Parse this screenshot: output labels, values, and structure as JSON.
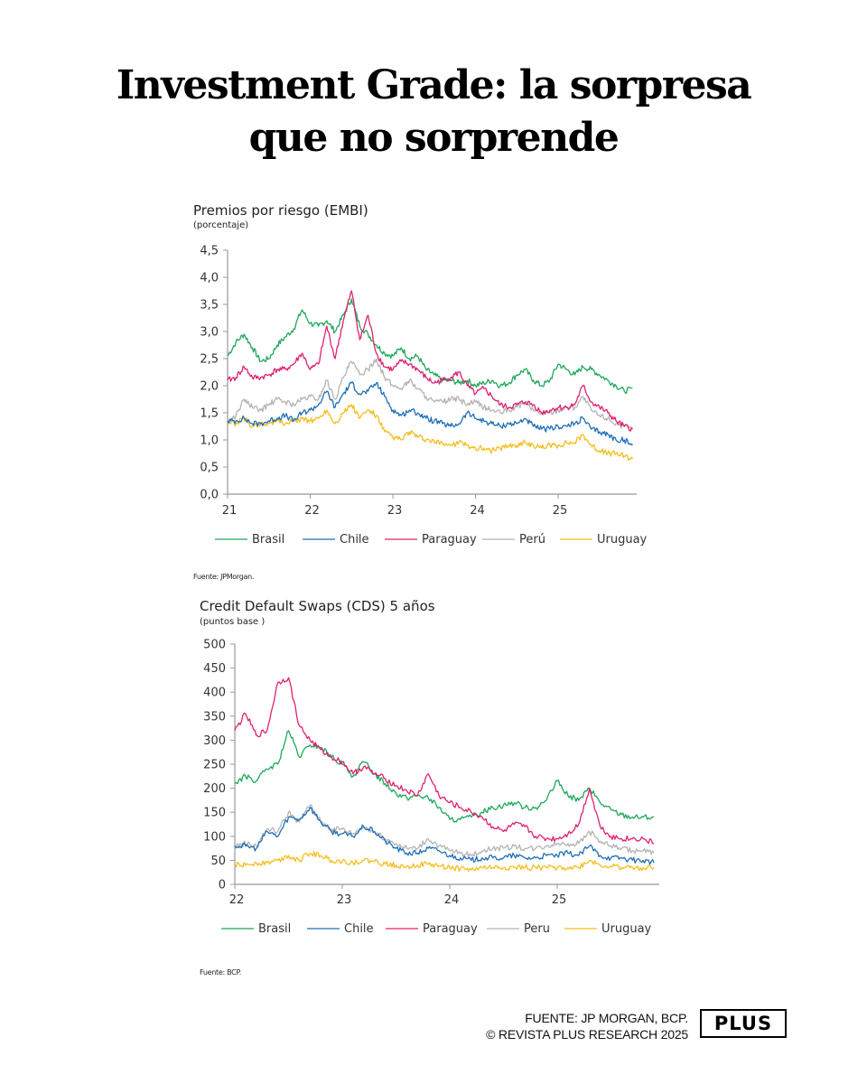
{
  "headline": {
    "line1": "Investment Grade: la sorpresa",
    "line2": "que no sorprende"
  },
  "footer": {
    "source_line": "FUENTE: JP MORGAN, BCP.",
    "copyright_line": "© REVISTA PLUS RESEARCH 2025",
    "logo": "PLUS"
  },
  "colors": {
    "Brasil": "#1fa85a",
    "Chile": "#1f6fb8",
    "Paraguay": "#e0206e",
    "Perú": "#b4b4b4",
    "Peru": "#b4b4b4",
    "Uruguay": "#f5bd1f"
  },
  "chart_data": [
    {
      "type": "line",
      "title": "Premios por riesgo (EMBI)",
      "subtitle": "(porcentaje)",
      "source": "Fuente: JPMorgan.",
      "xlabel": "",
      "ylabel": "",
      "ylim": [
        0,
        4.5
      ],
      "yticks": [
        "0,0",
        "0,5",
        "1,0",
        "1,5",
        "2,0",
        "2,5",
        "3,0",
        "3,5",
        "4,0",
        "4,5"
      ],
      "ytick_values": [
        0,
        0.5,
        1.0,
        1.5,
        2.0,
        2.5,
        3.0,
        3.5,
        4.0,
        4.5
      ],
      "xlim": [
        21,
        25.95
      ],
      "xticks": [
        "21",
        "22",
        "23",
        "24",
        "25"
      ],
      "xtick_values": [
        21,
        22,
        23,
        24,
        25
      ],
      "grid": false,
      "legend": "bottom",
      "x": [
        21.0,
        21.1,
        21.2,
        21.3,
        21.4,
        21.5,
        21.6,
        21.7,
        21.8,
        21.9,
        22.0,
        22.1,
        22.2,
        22.3,
        22.4,
        22.5,
        22.6,
        22.7,
        22.8,
        22.9,
        23.0,
        23.1,
        23.2,
        23.3,
        23.4,
        23.5,
        23.6,
        23.7,
        23.8,
        23.9,
        24.0,
        24.1,
        24.2,
        24.3,
        24.4,
        24.5,
        24.6,
        24.7,
        24.8,
        24.9,
        25.0,
        25.1,
        25.2,
        25.3,
        25.4,
        25.5,
        25.6,
        25.7,
        25.8,
        25.9
      ],
      "series": [
        {
          "name": "Brasil",
          "values": [
            2.55,
            2.8,
            2.95,
            2.7,
            2.45,
            2.5,
            2.75,
            2.9,
            3.05,
            3.4,
            3.15,
            3.1,
            3.2,
            3.0,
            3.3,
            3.6,
            3.1,
            2.95,
            2.75,
            2.6,
            2.55,
            2.7,
            2.5,
            2.55,
            2.3,
            2.2,
            2.1,
            2.1,
            2.05,
            2.1,
            2.0,
            2.05,
            2.1,
            2.0,
            2.05,
            2.2,
            2.3,
            2.1,
            2.0,
            2.1,
            2.4,
            2.3,
            2.2,
            2.35,
            2.3,
            2.2,
            2.1,
            2.0,
            1.9,
            1.95
          ]
        },
        {
          "name": "Chile",
          "values": [
            1.35,
            1.35,
            1.4,
            1.3,
            1.3,
            1.35,
            1.4,
            1.45,
            1.35,
            1.5,
            1.55,
            1.65,
            1.9,
            1.6,
            1.85,
            2.05,
            1.85,
            1.9,
            2.05,
            1.8,
            1.55,
            1.45,
            1.55,
            1.5,
            1.4,
            1.35,
            1.3,
            1.25,
            1.3,
            1.5,
            1.4,
            1.35,
            1.3,
            1.25,
            1.3,
            1.3,
            1.4,
            1.25,
            1.2,
            1.2,
            1.25,
            1.25,
            1.3,
            1.4,
            1.2,
            1.15,
            1.1,
            1.0,
            1.0,
            0.9
          ]
        },
        {
          "name": "Paraguay",
          "values": [
            2.1,
            2.15,
            2.35,
            2.15,
            2.15,
            2.2,
            2.3,
            2.3,
            2.4,
            2.6,
            2.3,
            2.4,
            3.1,
            2.5,
            3.2,
            3.75,
            2.85,
            3.3,
            2.6,
            2.35,
            2.3,
            2.45,
            2.4,
            2.3,
            2.15,
            2.05,
            2.1,
            2.15,
            2.25,
            2.0,
            1.85,
            1.95,
            1.8,
            1.65,
            1.6,
            1.65,
            1.7,
            1.65,
            1.5,
            1.55,
            1.6,
            1.6,
            1.65,
            2.0,
            1.7,
            1.6,
            1.5,
            1.35,
            1.25,
            1.2
          ]
        },
        {
          "name": "Perú",
          "values": [
            1.3,
            1.45,
            1.75,
            1.6,
            1.55,
            1.65,
            1.75,
            1.7,
            1.65,
            1.75,
            1.8,
            1.75,
            2.1,
            1.75,
            2.15,
            2.45,
            2.2,
            2.3,
            2.5,
            2.15,
            2.0,
            1.95,
            2.1,
            1.95,
            1.8,
            1.7,
            1.7,
            1.75,
            1.75,
            1.65,
            1.7,
            1.6,
            1.55,
            1.5,
            1.55,
            1.6,
            1.7,
            1.55,
            1.5,
            1.5,
            1.55,
            1.6,
            1.6,
            1.8,
            1.55,
            1.45,
            1.4,
            1.3,
            1.25,
            1.2
          ]
        },
        {
          "name": "Uruguay",
          "values": [
            1.35,
            1.3,
            1.4,
            1.25,
            1.3,
            1.3,
            1.35,
            1.3,
            1.35,
            1.4,
            1.35,
            1.4,
            1.55,
            1.3,
            1.5,
            1.65,
            1.4,
            1.55,
            1.45,
            1.15,
            1.05,
            1.0,
            1.15,
            1.05,
            1.0,
            0.95,
            0.95,
            0.9,
            0.95,
            0.9,
            0.85,
            0.85,
            0.8,
            0.85,
            0.9,
            0.9,
            0.95,
            0.9,
            0.85,
            0.9,
            0.9,
            0.95,
            0.95,
            1.1,
            0.9,
            0.8,
            0.75,
            0.75,
            0.7,
            0.65
          ]
        }
      ]
    },
    {
      "type": "line",
      "title": "Credit Default Swaps (CDS) 5 años",
      "subtitle": "(puntos base  )",
      "source": "Fuente: BCP.",
      "xlabel": "",
      "ylabel": "",
      "ylim": [
        0,
        500
      ],
      "yticks": [
        "0",
        "50",
        "100",
        "150",
        "200",
        "250",
        "300",
        "350",
        "400",
        "450",
        "500"
      ],
      "ytick_values": [
        0,
        50,
        100,
        150,
        200,
        250,
        300,
        350,
        400,
        450,
        500
      ],
      "xlim": [
        22,
        25.95
      ],
      "xticks": [
        "22",
        "23",
        "24",
        "25"
      ],
      "xtick_values": [
        22,
        23,
        24,
        25
      ],
      "grid": false,
      "legend": "bottom",
      "x": [
        22.0,
        22.1,
        22.2,
        22.3,
        22.4,
        22.5,
        22.6,
        22.7,
        22.8,
        22.9,
        23.0,
        23.1,
        23.2,
        23.3,
        23.4,
        23.5,
        23.6,
        23.7,
        23.8,
        23.9,
        24.0,
        24.1,
        24.2,
        24.3,
        24.4,
        24.5,
        24.6,
        24.7,
        24.8,
        24.9,
        25.0,
        25.1,
        25.2,
        25.3,
        25.4,
        25.5,
        25.6,
        25.7,
        25.8,
        25.9
      ],
      "series": [
        {
          "name": "Brasil",
          "values": [
            210,
            225,
            215,
            240,
            250,
            320,
            265,
            290,
            285,
            265,
            250,
            225,
            255,
            230,
            210,
            190,
            180,
            185,
            180,
            160,
            135,
            135,
            140,
            150,
            160,
            165,
            170,
            160,
            160,
            175,
            215,
            185,
            175,
            200,
            170,
            155,
            145,
            140,
            140,
            140
          ]
        },
        {
          "name": "Chile",
          "values": [
            80,
            80,
            75,
            110,
            100,
            140,
            135,
            160,
            130,
            110,
            105,
            100,
            120,
            110,
            90,
            75,
            65,
            65,
            75,
            70,
            60,
            55,
            50,
            55,
            55,
            55,
            60,
            55,
            55,
            60,
            60,
            65,
            60,
            80,
            60,
            55,
            55,
            50,
            50,
            45
          ]
        },
        {
          "name": "Paraguay",
          "values": [
            320,
            355,
            310,
            320,
            420,
            430,
            330,
            300,
            280,
            265,
            255,
            230,
            245,
            230,
            220,
            205,
            195,
            185,
            230,
            185,
            170,
            160,
            150,
            140,
            120,
            110,
            125,
            120,
            100,
            95,
            95,
            105,
            125,
            200,
            120,
            100,
            95,
            95,
            95,
            85
          ]
        },
        {
          "name": "Peru",
          "values": [
            80,
            85,
            80,
            115,
            110,
            150,
            130,
            165,
            130,
            115,
            115,
            105,
            120,
            110,
            95,
            85,
            75,
            75,
            95,
            80,
            70,
            65,
            60,
            70,
            75,
            75,
            80,
            75,
            75,
            80,
            85,
            85,
            85,
            110,
            90,
            80,
            75,
            70,
            70,
            65
          ]
        },
        {
          "name": "Uruguay",
          "values": [
            40,
            40,
            45,
            45,
            50,
            60,
            50,
            65,
            60,
            50,
            48,
            45,
            50,
            48,
            42,
            40,
            38,
            40,
            42,
            38,
            35,
            33,
            30,
            35,
            35,
            35,
            35,
            35,
            35,
            35,
            35,
            35,
            35,
            50,
            40,
            37,
            35,
            35,
            35,
            35
          ]
        }
      ]
    }
  ]
}
